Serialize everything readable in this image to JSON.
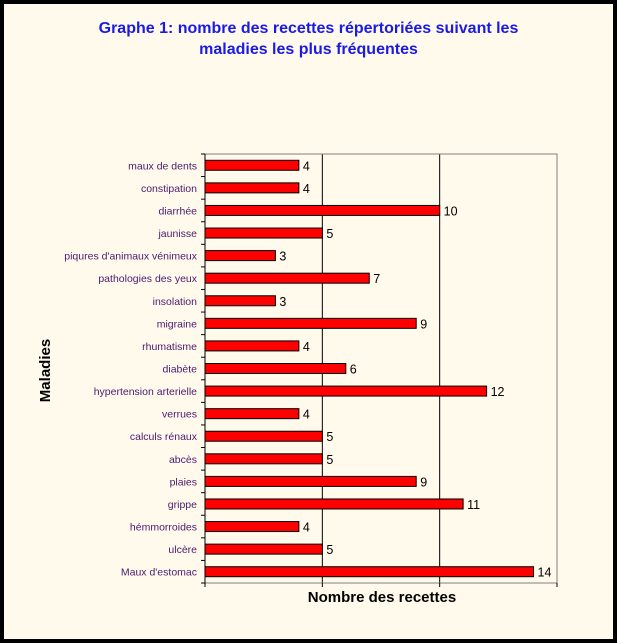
{
  "chart_data": {
    "type": "bar",
    "orientation": "horizontal",
    "title": "Graphe 1: nombre des recettes répertoriées suivant les\nmaladies les plus fréquentes",
    "xlabel": "Nombre des recettes",
    "ylabel": "Maladies",
    "categories": [
      "maux de dents",
      "constipation",
      "diarrhée",
      "jaunisse",
      "piqures d'animaux vénimeux",
      "pathologies des yeux",
      "insolation",
      "migraine",
      "rhumatisme",
      "diabète",
      "hypertension arterielle",
      "verrues",
      "calculs rénaux",
      "abcès",
      "plaies",
      "grippe",
      "hémmorroides",
      "ulcère",
      "Maux d'estomac"
    ],
    "values": [
      4,
      4,
      10,
      5,
      3,
      7,
      3,
      9,
      4,
      6,
      12,
      4,
      5,
      5,
      9,
      11,
      4,
      5,
      14
    ],
    "xlim": [
      0,
      15
    ],
    "gridlines_x": [
      5,
      10
    ],
    "bar_color": "#ff0000",
    "plot_background": "#fffaec",
    "background": "#fffaec",
    "border_color": "#000000",
    "data_labels": true,
    "legend": "none"
  }
}
